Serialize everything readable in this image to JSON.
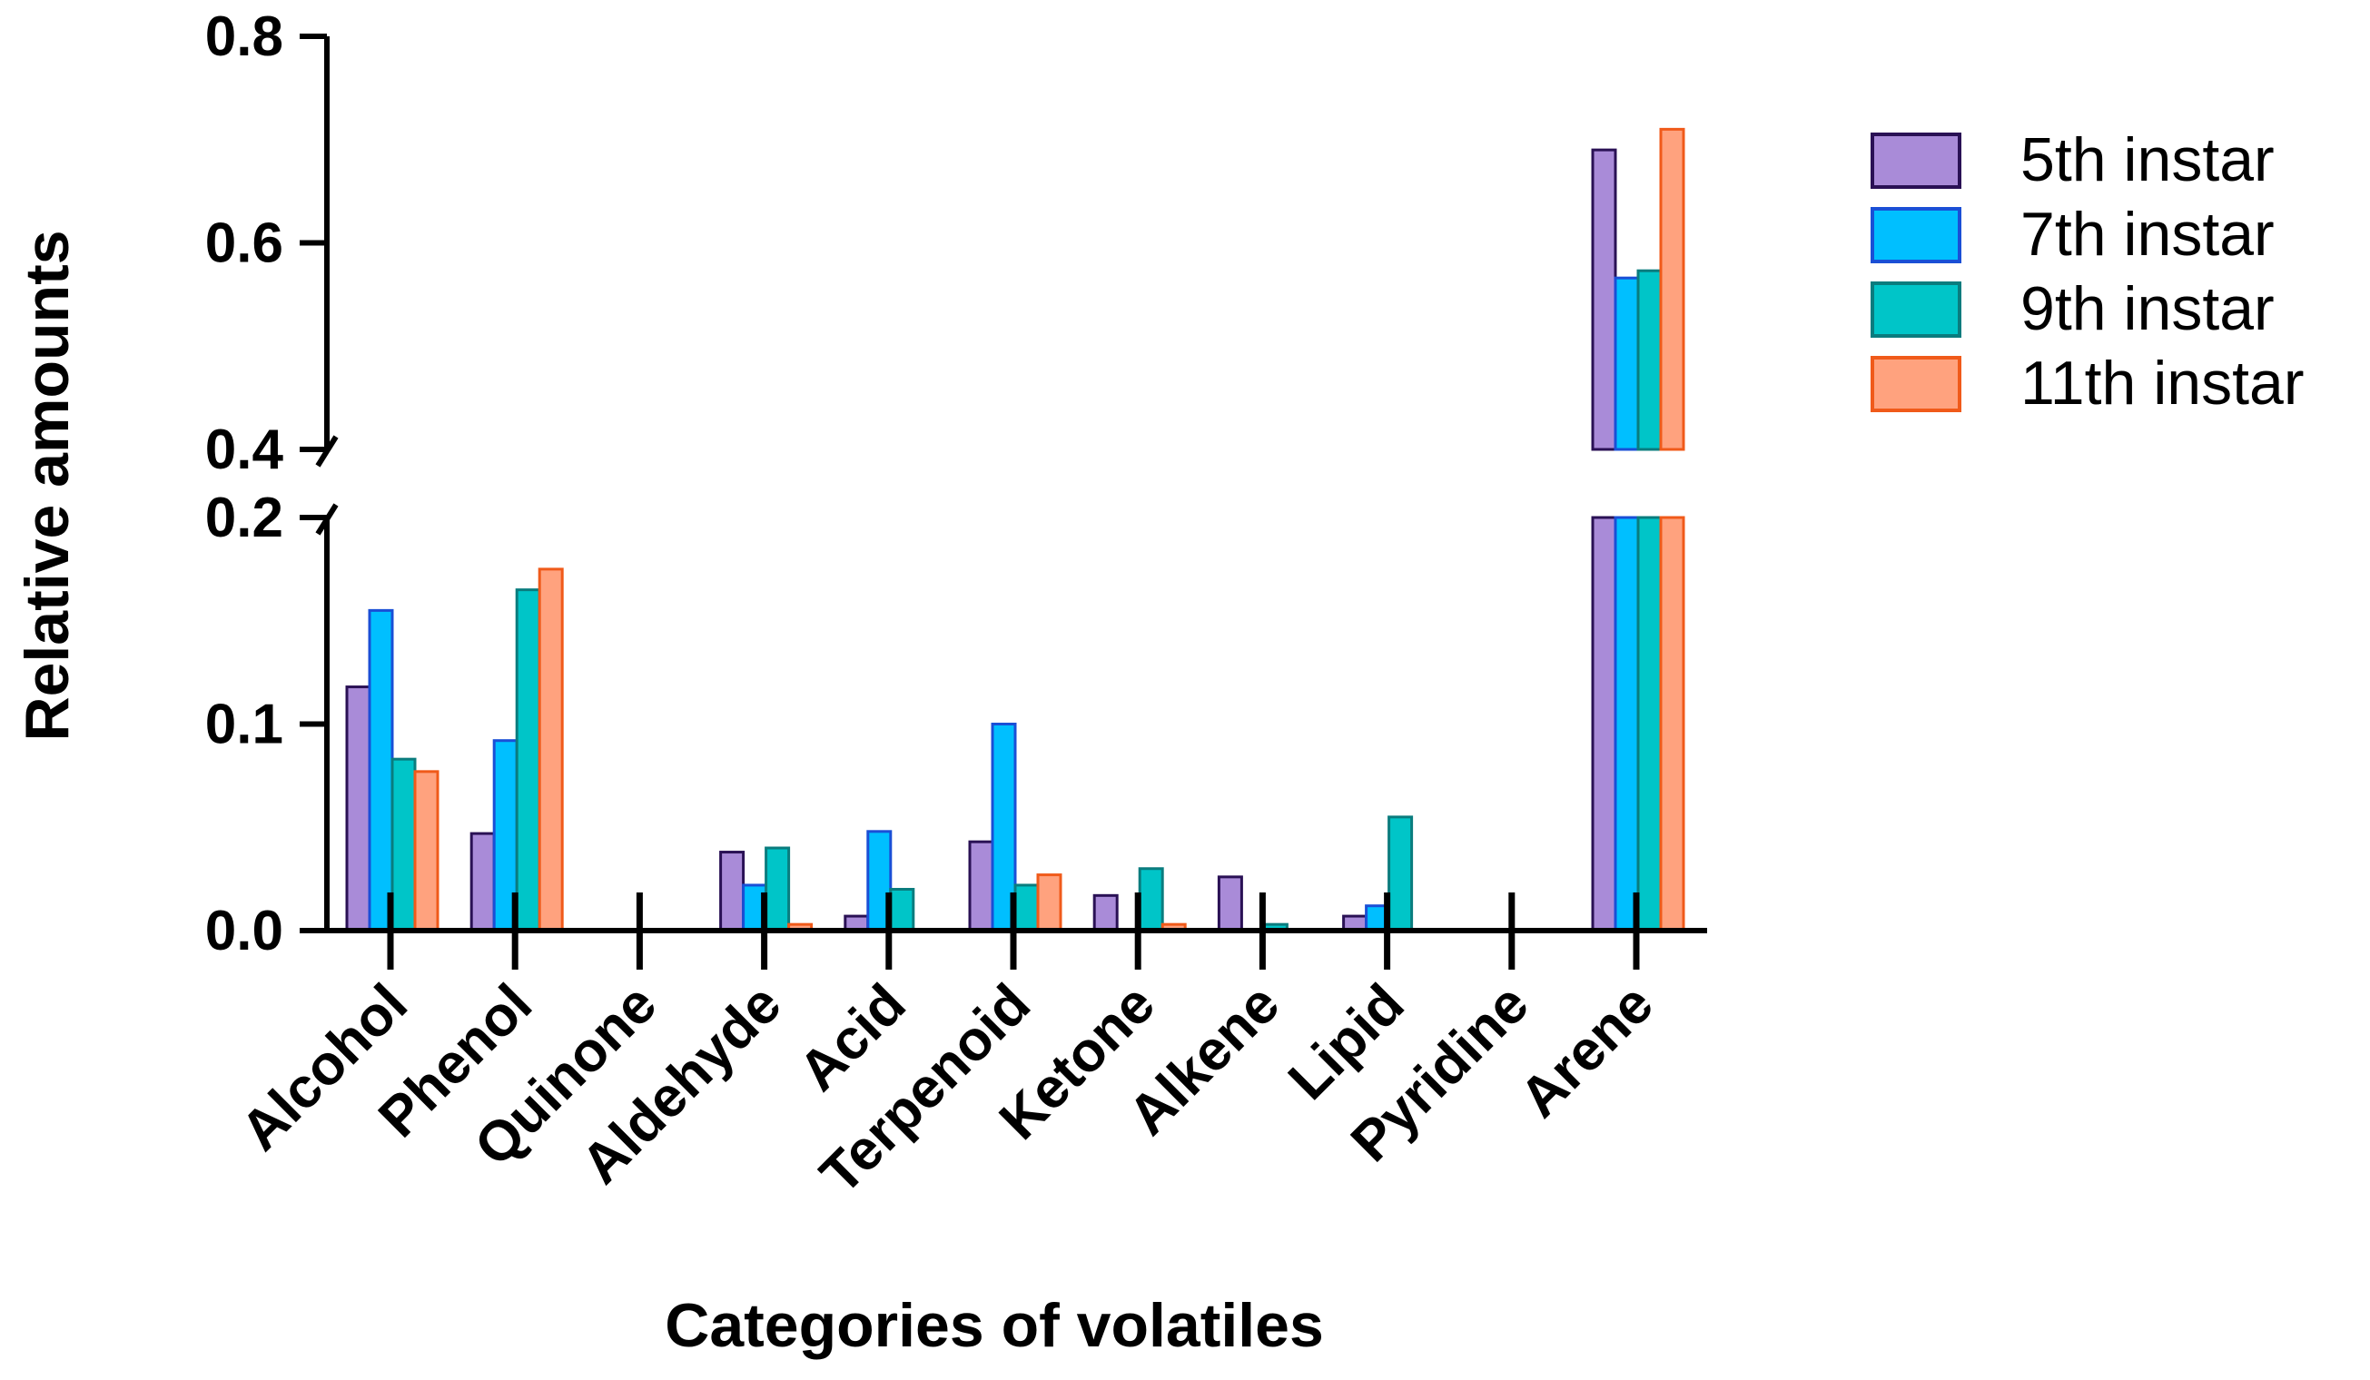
{
  "chart_data": {
    "type": "bar",
    "xlabel": "Categories of volatiles",
    "ylabel": "Relative amounts",
    "categories": [
      "Alcohol",
      "Phenol",
      "Quinone",
      "Aldehyde",
      "Acid",
      "Terpenoid",
      "Ketone",
      "Alkene",
      "Lipid",
      "Pyridine",
      "Arene"
    ],
    "series": [
      {
        "name": "5th instar",
        "fill": "#a98bd8",
        "stroke": "#2a1155",
        "values": [
          0.118,
          0.047,
          0.0,
          0.038,
          0.007,
          0.043,
          0.017,
          0.026,
          0.007,
          0.0,
          0.69
        ]
      },
      {
        "name": "7th instar",
        "fill": "#00bfff",
        "stroke": "#1a4fd6",
        "values": [
          0.155,
          0.092,
          0.0,
          0.022,
          0.048,
          0.1,
          0.0,
          0.0,
          0.012,
          0.0,
          0.566
        ]
      },
      {
        "name": "9th instar",
        "fill": "#00c5c8",
        "stroke": "#0a7c7e",
        "values": [
          0.083,
          0.165,
          0.0,
          0.04,
          0.02,
          0.022,
          0.03,
          0.003,
          0.055,
          0.0,
          0.573
        ]
      },
      {
        "name": "11th instar",
        "fill": "#ffa27e",
        "stroke": "#f05a1a",
        "values": [
          0.077,
          0.175,
          0.0,
          0.003,
          0.0,
          0.027,
          0.003,
          0.0,
          0.0,
          0.0,
          0.71
        ]
      }
    ],
    "y_segments": [
      [
        0,
        0.2
      ],
      [
        0.4,
        0.8
      ]
    ],
    "yticks_lower": [
      "0.0",
      "0.1",
      "0.2"
    ],
    "yticks_upper": [
      "0.4",
      "0.6",
      "0.8"
    ],
    "legend_position": "top-right",
    "grid": false
  }
}
